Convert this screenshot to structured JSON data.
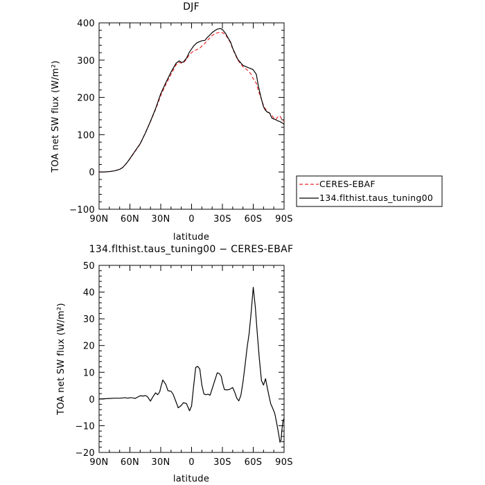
{
  "chart_data": [
    {
      "type": "line",
      "title": "DJF",
      "xlabel": "latitude",
      "ylabel": "TOA net SW flux (W/m²)",
      "ylim": [
        -100,
        400
      ],
      "xlim": [
        90,
        -90
      ],
      "xtick_labels": [
        "90N",
        "60N",
        "30N",
        "0",
        "30S",
        "60S",
        "90S"
      ],
      "ytick_labels": [
        "-100",
        "0",
        "100",
        "200",
        "300",
        "400"
      ],
      "legend_position": "right",
      "grid": false,
      "series": [
        {
          "name": "CERES-EBAF",
          "color": "#e8262a",
          "style": "dashed",
          "x": [
            90,
            85,
            80,
            75,
            70,
            67,
            65,
            62,
            60,
            55,
            50,
            45,
            40,
            35,
            30,
            25,
            20,
            15,
            12,
            10,
            8,
            5,
            2,
            0,
            -2,
            -5,
            -8,
            -10,
            -13,
            -15,
            -18,
            -20,
            -23,
            -25,
            -28,
            -30,
            -33,
            -35,
            -38,
            -40,
            -45,
            -50,
            -55,
            -58,
            -60,
            -63,
            -65,
            -68,
            -70,
            -72,
            -74,
            -76,
            -78,
            -80,
            -82,
            -84,
            -86,
            -88,
            -90
          ],
          "y": [
            0,
            0,
            1,
            3,
            7,
            12,
            18,
            28,
            35,
            55,
            75,
            105,
            135,
            168,
            205,
            235,
            262,
            288,
            294,
            292,
            293,
            302,
            315,
            320,
            325,
            328,
            332,
            338,
            345,
            352,
            360,
            366,
            372,
            373,
            375,
            374,
            368,
            360,
            346,
            330,
            300,
            282,
            272,
            262,
            250,
            238,
            218,
            195,
            178,
            168,
            162,
            158,
            152,
            145,
            141,
            148,
            150,
            140,
            135
          ]
        },
        {
          "name": "134.flthist.taus_tuning00",
          "color": "#000000",
          "style": "solid",
          "x": [
            90,
            85,
            80,
            75,
            70,
            67,
            65,
            62,
            60,
            55,
            50,
            45,
            40,
            35,
            30,
            25,
            20,
            15,
            12,
            10,
            8,
            5,
            2,
            0,
            -2,
            -5,
            -8,
            -10,
            -13,
            -15,
            -18,
            -20,
            -23,
            -25,
            -28,
            -30,
            -33,
            -35,
            -38,
            -40,
            -45,
            -50,
            -55,
            -58,
            -60,
            -63,
            -65,
            -68,
            -70,
            -72,
            -74,
            -76,
            -78,
            -80,
            -82,
            -84,
            -86,
            -88,
            -90
          ],
          "y": [
            0,
            0,
            1,
            3,
            7,
            12,
            18,
            28,
            36,
            56,
            76,
            104,
            136,
            170,
            210,
            240,
            268,
            292,
            298,
            294,
            295,
            305,
            322,
            330,
            338,
            346,
            350,
            352,
            353,
            360,
            368,
            374,
            380,
            383,
            385,
            382,
            372,
            362,
            348,
            332,
            302,
            286,
            280,
            277,
            274,
            262,
            230,
            195,
            175,
            165,
            160,
            158,
            145,
            142,
            140,
            137,
            135,
            132,
            128
          ]
        }
      ]
    },
    {
      "type": "line",
      "title": "134.flthist.taus_tuning00 − CERES-EBAF",
      "xlabel": "latitude",
      "ylabel": "TOA net SW flux (W/m²)",
      "ylim": [
        -20,
        50
      ],
      "xlim": [
        90,
        -90
      ],
      "xtick_labels": [
        "90N",
        "60N",
        "30N",
        "0",
        "30S",
        "60S",
        "90S"
      ],
      "ytick_labels": [
        "-20",
        "-10",
        "0",
        "10",
        "20",
        "30",
        "40",
        "50"
      ],
      "grid": false,
      "series": [
        {
          "color": "#000000",
          "style": "solid",
          "x": [
            90,
            85,
            80,
            75,
            70,
            67,
            65,
            62,
            60,
            57,
            55,
            52,
            50,
            47,
            45,
            43,
            40,
            38,
            35,
            33,
            31,
            30,
            28,
            25,
            23,
            20,
            18,
            15,
            13,
            10,
            8,
            5,
            3,
            2,
            0,
            -2,
            -4,
            -6,
            -8,
            -10,
            -12,
            -14,
            -16,
            -18,
            -20,
            -22,
            -25,
            -27,
            -29,
            -30,
            -32,
            -35,
            -37,
            -40,
            -42,
            -44,
            -46,
            -48,
            -50,
            -52,
            -54,
            -56,
            -58,
            -60,
            -62,
            -64,
            -66,
            -68,
            -70,
            -72,
            -73,
            -75,
            -77,
            -79,
            -81,
            -83,
            -85,
            -86,
            -87,
            -88,
            -89,
            -90
          ],
          "y": [
            0,
            0.1,
            0.2,
            0.3,
            0.3,
            0.4,
            0.5,
            0.3,
            0.5,
            0.4,
            0.2,
            0.8,
            1.2,
            1.1,
            1.3,
            0.9,
            -0.8,
            0.6,
            2.3,
            1.6,
            2.7,
            4.3,
            7.1,
            5.4,
            3.1,
            2.9,
            1.8,
            -1.2,
            -3.3,
            -2.4,
            -1.4,
            -1.7,
            -3.5,
            -4.4,
            -2.6,
            4.8,
            11.8,
            12.2,
            11.2,
            5.2,
            1.9,
            1.6,
            1.8,
            1.4,
            3.8,
            6.2,
            9.8,
            9.5,
            8.4,
            6.2,
            3.5,
            3.4,
            3.6,
            4.3,
            2.5,
            0.3,
            -0.7,
            1.4,
            6.3,
            12.5,
            19.2,
            24.5,
            32.5,
            41.8,
            34.5,
            24.2,
            14.8,
            6.9,
            5.2,
            7.6,
            5.5,
            1.7,
            -1.8,
            -3.5,
            -5.5,
            -9.4,
            -13.7,
            -16.2,
            -15.5,
            -11.2,
            -8.2,
            -7.3
          ]
        }
      ]
    }
  ]
}
